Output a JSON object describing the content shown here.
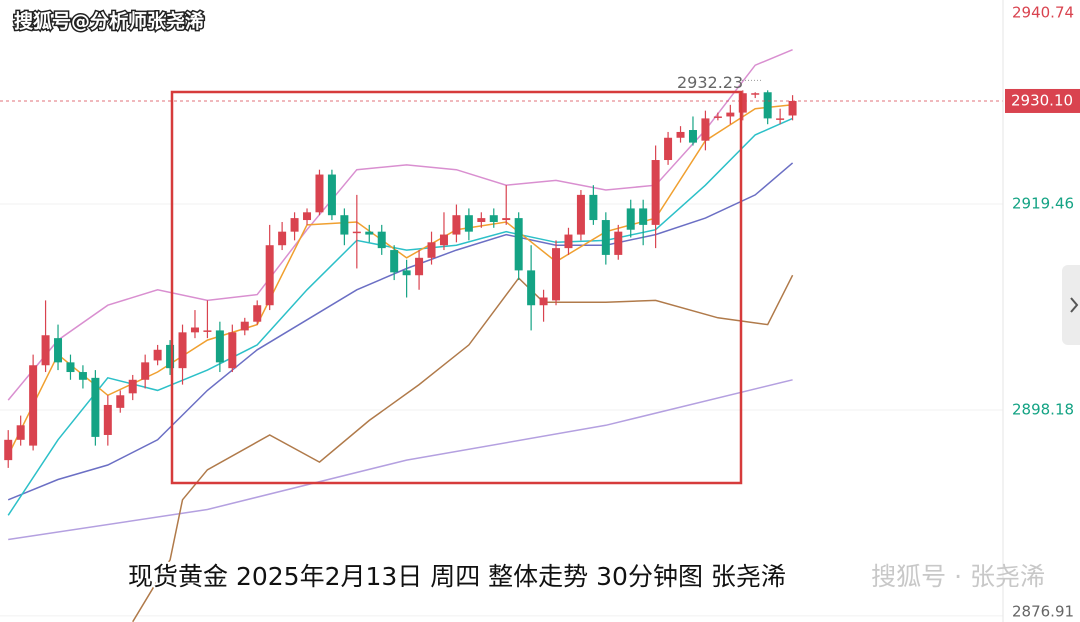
{
  "chart_data": {
    "type": "candlestick",
    "watermark": "搜狐号@分析师张尧浠",
    "caption": "现货黄金  2025年2月13日 周四  整体走势 30分钟图 张尧浠",
    "watermark2": "搜狐号 · 张尧浠",
    "up_color": "#d9434f",
    "down_color": "#14a384",
    "ylim": [
      2876.28,
      2940.53
    ],
    "yticks": [
      2940.74,
      2919.46,
      2898.18,
      2876.91
    ],
    "grid": true,
    "last_price": {
      "value": 2930.1,
      "label": "2930.10"
    },
    "high_label": 2932.23,
    "candles": [
      [
        2893.0,
        2896.1,
        2892.2,
        2895.1
      ],
      [
        2895.1,
        2897.6,
        2894.5,
        2896.6
      ],
      [
        2894.5,
        2903.9,
        2894.0,
        2902.8
      ],
      [
        2902.8,
        2909.5,
        2902.1,
        2905.9
      ],
      [
        2905.6,
        2907.0,
        2902.3,
        2903.1
      ],
      [
        2903.1,
        2903.9,
        2901.3,
        2902.1
      ],
      [
        2902.1,
        2902.8,
        2900.4,
        2901.3
      ],
      [
        2901.5,
        2902.3,
        2894.5,
        2895.4
      ],
      [
        2895.6,
        2899.7,
        2894.5,
        2898.7
      ],
      [
        2898.4,
        2900.2,
        2897.9,
        2899.7
      ],
      [
        2899.9,
        2901.8,
        2899.2,
        2901.3
      ],
      [
        2901.3,
        2903.9,
        2900.4,
        2903.1
      ],
      [
        2903.3,
        2904.9,
        2902.8,
        2904.4
      ],
      [
        2904.9,
        2905.4,
        2901.8,
        2902.5
      ],
      [
        2902.5,
        2907.0,
        2900.8,
        2906.2
      ],
      [
        2906.2,
        2908.5,
        2905.6,
        2906.7
      ],
      [
        2906.4,
        2909.5,
        2905.6,
        2906.4
      ],
      [
        2906.4,
        2907.3,
        2902.1,
        2903.1
      ],
      [
        2902.5,
        2907.0,
        2902.1,
        2906.2
      ],
      [
        2906.4,
        2907.7,
        2905.9,
        2907.3
      ],
      [
        2907.3,
        2909.5,
        2907.0,
        2909.0
      ],
      [
        2909.0,
        2917.3,
        2908.5,
        2915.2
      ],
      [
        2915.2,
        2917.6,
        2914.7,
        2916.6
      ],
      [
        2916.6,
        2918.6,
        2915.7,
        2918.0
      ],
      [
        2917.8,
        2919.0,
        2917.3,
        2918.6
      ],
      [
        2918.6,
        2923.0,
        2918.3,
        2922.5
      ],
      [
        2922.5,
        2923.0,
        2917.8,
        2918.3
      ],
      [
        2918.3,
        2919.0,
        2915.2,
        2916.3
      ],
      [
        2916.6,
        2920.4,
        2912.8,
        2916.6
      ],
      [
        2916.6,
        2917.3,
        2915.5,
        2916.3
      ],
      [
        2916.6,
        2917.3,
        2914.2,
        2914.9
      ],
      [
        2914.7,
        2915.2,
        2911.6,
        2912.4
      ],
      [
        2912.6,
        2913.7,
        2909.8,
        2912.1
      ],
      [
        2912.1,
        2914.7,
        2910.6,
        2913.9
      ],
      [
        2913.9,
        2916.6,
        2913.2,
        2915.5
      ],
      [
        2915.2,
        2918.6,
        2914.7,
        2916.3
      ],
      [
        2916.3,
        2919.4,
        2915.5,
        2918.3
      ],
      [
        2918.3,
        2919.0,
        2915.7,
        2916.6
      ],
      [
        2917.6,
        2918.6,
        2917.0,
        2918.0
      ],
      [
        2918.3,
        2919.0,
        2917.0,
        2917.6
      ],
      [
        2917.8,
        2921.4,
        2917.3,
        2918.0
      ],
      [
        2918.0,
        2918.6,
        2911.6,
        2912.6
      ],
      [
        2912.6,
        2915.2,
        2906.4,
        2909.0
      ],
      [
        2909.0,
        2910.6,
        2907.3,
        2909.8
      ],
      [
        2909.5,
        2915.7,
        2909.0,
        2914.9
      ],
      [
        2914.9,
        2917.0,
        2914.2,
        2916.3
      ],
      [
        2916.3,
        2920.9,
        2915.7,
        2920.4
      ],
      [
        2920.4,
        2921.4,
        2917.3,
        2917.8
      ],
      [
        2917.8,
        2918.6,
        2913.2,
        2914.2
      ],
      [
        2914.2,
        2917.3,
        2913.7,
        2916.6
      ],
      [
        2919.0,
        2919.9,
        2916.0,
        2916.8
      ],
      [
        2919.0,
        2919.9,
        2915.2,
        2917.3
      ],
      [
        2917.3,
        2925.5,
        2914.9,
        2924.0
      ],
      [
        2924.0,
        2926.9,
        2923.5,
        2926.3
      ],
      [
        2926.3,
        2927.5,
        2925.8,
        2926.9
      ],
      [
        2927.1,
        2928.5,
        2925.5,
        2925.8
      ],
      [
        2926.0,
        2929.1,
        2925.0,
        2928.3
      ],
      [
        2928.5,
        2928.9,
        2928.1,
        2928.5
      ],
      [
        2928.5,
        2929.7,
        2927.7,
        2928.9
      ],
      [
        2928.9,
        2931.2,
        2928.1,
        2930.9
      ],
      [
        2930.9,
        2931.0,
        2930.4,
        2930.9
      ],
      [
        2931.0,
        2931.2,
        2927.7,
        2928.3
      ],
      [
        2928.3,
        2929.3,
        2927.7,
        2928.3
      ],
      [
        2928.6,
        2930.7,
        2928.1,
        2930.1
      ]
    ],
    "lines": [
      {
        "color": "#b4a0e0",
        "x": [
          0,
          16,
          32,
          48,
          63
        ],
        "values": [
          2884.8,
          2887.9,
          2893.0,
          2896.6,
          2901.3
        ]
      },
      {
        "color": "#b07a4a",
        "x": [
          10,
          13,
          14,
          16,
          21,
          25,
          29,
          33,
          37,
          41,
          43,
          48,
          52,
          57,
          61,
          63
        ],
        "values": [
          2876.3,
          2882.7,
          2888.9,
          2892.0,
          2895.6,
          2892.8,
          2897.1,
          2900.8,
          2904.9,
          2911.8,
          2909.3,
          2909.3,
          2909.5,
          2907.7,
          2907.0,
          2912.1
        ]
      },
      {
        "color": "#d98fd0",
        "x": [
          0,
          4,
          8,
          12,
          16,
          20,
          24,
          28,
          32,
          36,
          40,
          44,
          48,
          52,
          56,
          60,
          63
        ],
        "values": [
          2899.2,
          2905.4,
          2909.0,
          2910.6,
          2909.5,
          2910.1,
          2916.8,
          2923.0,
          2923.5,
          2923.0,
          2921.4,
          2921.9,
          2920.9,
          2921.4,
          2927.1,
          2933.8,
          2935.4
        ]
      },
      {
        "color": "#6b6fc4",
        "x": [
          0,
          4,
          8,
          12,
          16,
          20,
          24,
          28,
          32,
          36,
          40,
          44,
          48,
          52,
          56,
          60,
          63
        ],
        "values": [
          2888.9,
          2891.0,
          2892.5,
          2895.1,
          2900.2,
          2904.4,
          2907.5,
          2910.6,
          2912.8,
          2914.7,
          2916.3,
          2915.2,
          2915.2,
          2916.3,
          2918.0,
          2920.4,
          2923.7
        ]
      },
      {
        "color": "#2cc0c8",
        "x": [
          0,
          4,
          8,
          12,
          16,
          20,
          24,
          28,
          32,
          36,
          40,
          44,
          48,
          52,
          56,
          60,
          63
        ],
        "values": [
          2887.3,
          2895.1,
          2901.5,
          2900.2,
          2902.3,
          2904.9,
          2910.6,
          2915.7,
          2914.7,
          2915.2,
          2916.6,
          2915.5,
          2915.7,
          2916.8,
          2921.4,
          2926.6,
          2928.3
        ]
      },
      {
        "color": "#f0a030",
        "x": [
          0,
          4,
          8,
          12,
          16,
          20,
          24,
          28,
          32,
          36,
          40,
          44,
          48,
          52,
          56,
          60,
          63
        ],
        "values": [
          2893.5,
          2903.9,
          2899.7,
          2902.1,
          2905.4,
          2907.0,
          2917.3,
          2917.6,
          2913.9,
          2916.8,
          2917.6,
          2913.5,
          2916.6,
          2918.0,
          2926.0,
          2929.3,
          2929.7
        ]
      }
    ]
  }
}
